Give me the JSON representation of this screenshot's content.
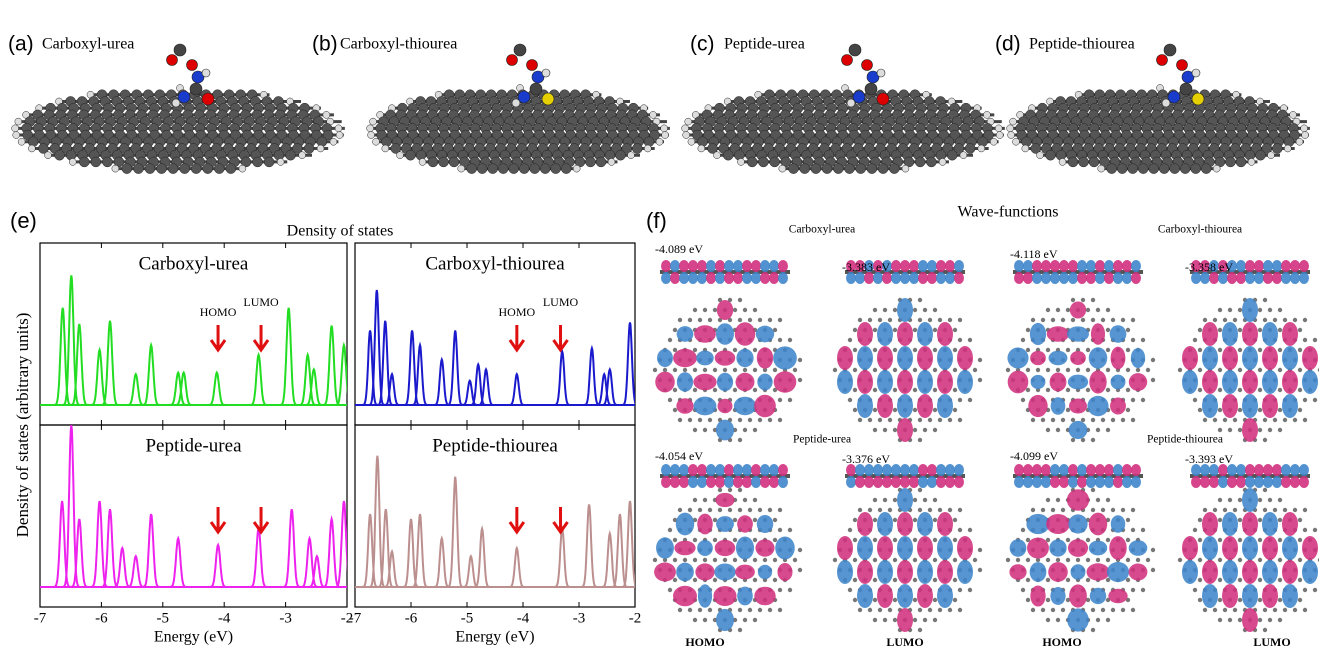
{
  "panels": [
    {
      "label": "(a)",
      "name": "Carboxyl-urea"
    },
    {
      "label": "(b)",
      "name": "Carboxyl-thiourea"
    },
    {
      "label": "(c)",
      "name": "Peptide-urea"
    },
    {
      "label": "(d)",
      "name": "Peptide-thiourea"
    }
  ],
  "dos": {
    "label": "(e)",
    "title": "Density of states",
    "ylabel": "Density of states (arbitrary units)"
  },
  "chart_data": [
    {
      "type": "spectrum",
      "title": "Carboxyl-urea",
      "color": "#22dd22",
      "x": [
        -6.63,
        -6.49,
        -6.36,
        -6.03,
        -5.86,
        -5.44,
        -5.19,
        -4.75,
        -4.66,
        -4.12,
        -3.44,
        -2.95,
        -2.64,
        -2.54,
        -2.25,
        -2.05
      ],
      "values": [
        0.6,
        0.8,
        0.5,
        0.34,
        0.52,
        0.19,
        0.37,
        0.2,
        0.2,
        0.2,
        0.31,
        0.6,
        0.31,
        0.22,
        0.49,
        0.37
      ],
      "xlim": [
        -7,
        -2
      ],
      "ylim": [
        0,
        1
      ],
      "xticks": [
        -7,
        -6,
        -5,
        -4,
        -3,
        -2
      ],
      "markers": [
        {
          "x": -4.1,
          "label": "HOMO"
        },
        {
          "x": -3.4,
          "label": "LUMO"
        }
      ]
    },
    {
      "type": "spectrum",
      "title": "Carboxyl-thiourea",
      "color": "#1a1acc",
      "x": [
        -6.73,
        -6.61,
        -6.46,
        -6.34,
        -5.98,
        -5.84,
        -5.45,
        -5.21,
        -4.95,
        -4.8,
        -4.66,
        -4.11,
        -3.3,
        -2.77,
        -2.55,
        -2.45,
        -2.09
      ],
      "values": [
        0.46,
        0.71,
        0.52,
        0.19,
        0.46,
        0.37,
        0.28,
        0.46,
        0.15,
        0.25,
        0.22,
        0.19,
        0.33,
        0.35,
        0.19,
        0.22,
        0.51
      ],
      "xlim": [
        -7,
        -2
      ],
      "ylim": [
        0,
        1
      ],
      "xticks": [
        -7,
        -6,
        -5,
        -4,
        -3,
        -2
      ],
      "markers": [
        {
          "x": -4.11,
          "label": "HOMO"
        },
        {
          "x": -3.33,
          "label": "LUMO"
        }
      ]
    },
    {
      "type": "spectrum",
      "title": "Peptide-urea",
      "color": "#ee22ee",
      "x": [
        -6.64,
        -6.49,
        -6.36,
        -6.03,
        -5.86,
        -5.66,
        -5.44,
        -5.19,
        -4.75,
        -4.1,
        -3.44,
        -2.9,
        -2.61,
        -2.49,
        -2.25,
        -2.05
      ],
      "values": [
        0.53,
        1.0,
        0.42,
        0.53,
        0.48,
        0.24,
        0.19,
        0.45,
        0.3,
        0.26,
        0.36,
        0.48,
        0.3,
        0.19,
        0.42,
        0.53
      ],
      "xlim": [
        -7,
        -2
      ],
      "ylim": [
        0,
        1
      ],
      "xticks": [
        -7,
        -6,
        -5,
        -4,
        -3,
        -2
      ],
      "xlabel": "Energy (eV)",
      "markers": [
        {
          "x": -4.1
        },
        {
          "x": -3.4
        }
      ]
    },
    {
      "type": "spectrum",
      "title": "Peptide-thiourea",
      "color": "#bc8f8f",
      "x": [
        -6.73,
        -6.6,
        -6.45,
        -6.34,
        -6.0,
        -5.84,
        -5.45,
        -5.21,
        -4.93,
        -4.73,
        -4.11,
        -3.3,
        -2.82,
        -2.45,
        -2.27,
        -2.09
      ],
      "values": [
        0.45,
        0.81,
        0.48,
        0.22,
        0.42,
        0.45,
        0.3,
        0.68,
        0.19,
        0.36,
        0.24,
        0.36,
        0.51,
        0.33,
        0.45,
        0.53
      ],
      "xlim": [
        -7,
        -2
      ],
      "ylim": [
        0,
        1
      ],
      "xticks": [
        -7,
        -6,
        -5,
        -4,
        -3,
        -2
      ],
      "xlabel": "Energy (eV)",
      "markers": [
        {
          "x": -4.11
        },
        {
          "x": -3.33
        }
      ]
    }
  ],
  "wave": {
    "label": "(f)",
    "title": "Wave-functions",
    "groups": [
      {
        "name": "Carboxyl-urea",
        "homo": "-4.089 eV",
        "lumo": "-3.383 eV"
      },
      {
        "name": "Carboxyl-thiourea",
        "homo": "-4.118 eV",
        "lumo": "-3.358 eV"
      },
      {
        "name": "Peptide-urea",
        "homo": "-4.054 eV",
        "lumo": "-3.376 eV"
      },
      {
        "name": "Peptide-thiourea",
        "homo": "-4.099 eV",
        "lumo": "-3.393 eV"
      }
    ],
    "columns": [
      "HOMO",
      "LUMO",
      "HOMO",
      "LUMO"
    ]
  }
}
